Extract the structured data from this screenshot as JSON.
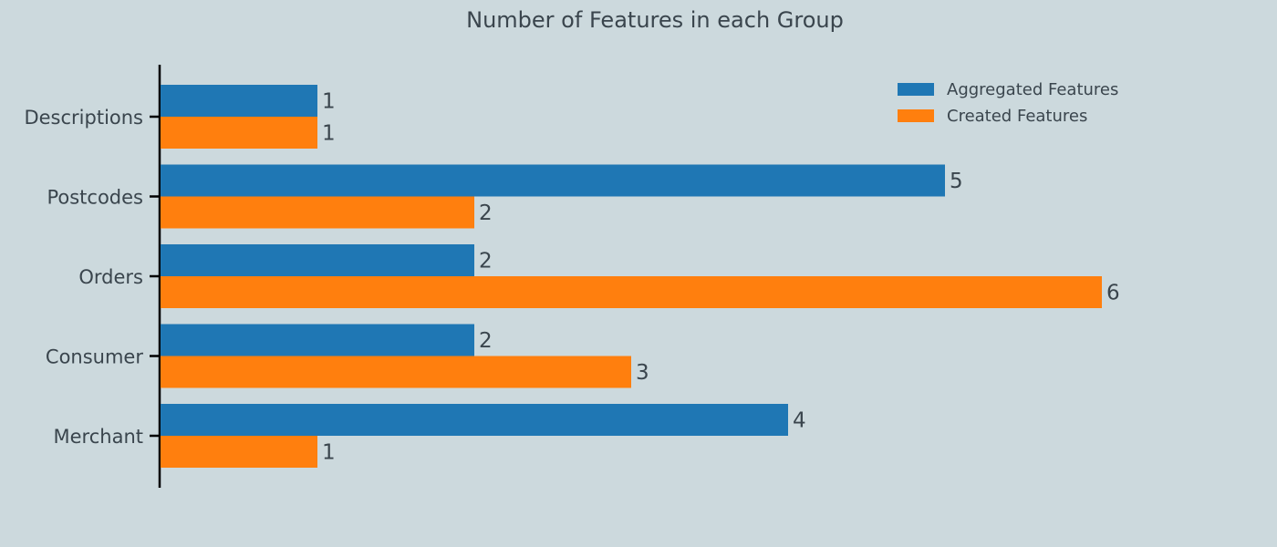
{
  "chart_data": {
    "type": "bar",
    "orientation": "horizontal",
    "title": "Number of Features in each Group",
    "categories": [
      "Descriptions",
      "Postcodes",
      "Orders",
      "Consumer",
      "Merchant"
    ],
    "series": [
      {
        "name": "Aggregated Features",
        "values": [
          1,
          5,
          2,
          2,
          4
        ],
        "color": "#1f77b4"
      },
      {
        "name": "Created Features",
        "values": [
          1,
          2,
          6,
          3,
          1
        ],
        "color": "#ff7f0e"
      }
    ],
    "xlim": [
      0,
      6
    ],
    "grid": false,
    "legend": "top-right",
    "data_labels": true
  }
}
